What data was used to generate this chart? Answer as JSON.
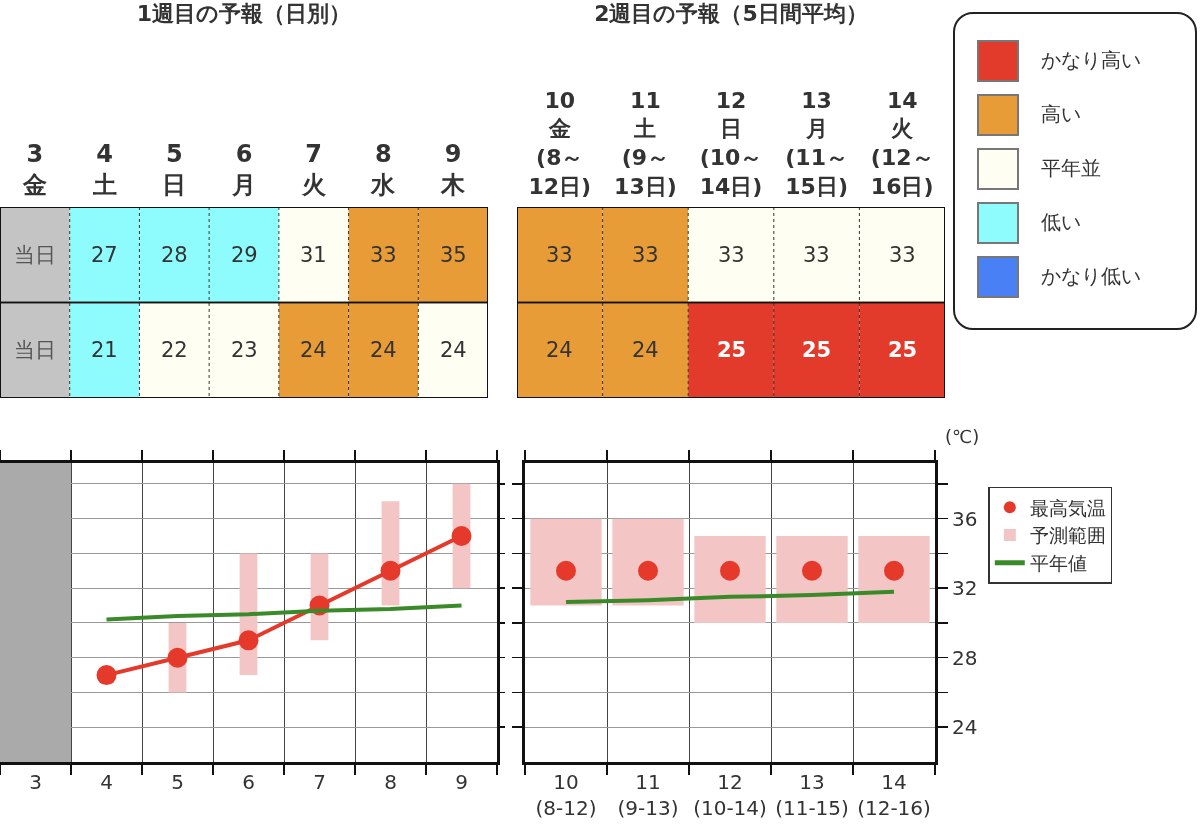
{
  "chart_data": [
    {
      "type": "heatmap",
      "title": "1週目の予報（日別）",
      "categories": [
        "3\n金",
        "4\n土",
        "5\n日",
        "6\n月",
        "7\n火",
        "8\n水",
        "9\n木"
      ],
      "y_categories": [
        null,
        null
      ],
      "data_labels": true,
      "cells": [
        [
          null,
          27,
          28,
          29,
          31,
          33,
          35
        ],
        [
          null,
          21,
          22,
          23,
          24,
          24,
          24
        ]
      ],
      "cell_labels": [
        [
          "当日",
          "27",
          "28",
          "29",
          "31",
          "33",
          "35"
        ],
        [
          "当日",
          "21",
          "22",
          "23",
          "24",
          "24",
          "24"
        ]
      ],
      "colors": [
        [
          "#c4c4c4",
          "#8efcfc",
          "#8efcfc",
          "#8efcfc",
          "#fffef2",
          "#e89c38",
          "#e89c38"
        ],
        [
          "#c4c4c4",
          "#8efcfc",
          "#fffef2",
          "#fffef2",
          "#e89c38",
          "#e89c38",
          "#fffef2"
        ]
      ]
    },
    {
      "type": "heatmap",
      "title": "2週目の予報（5日間平均）",
      "categories": [
        "10\n金\n(8～\n12日)",
        "11\n土\n(9～\n13日)",
        "12\n日\n(10～\n14日)",
        "13\n月\n(11～\n15日)",
        "14\n火\n(12～\n16日)"
      ],
      "y_categories": [
        null,
        null
      ],
      "data_labels": true,
      "cells": [
        [
          33,
          33,
          33,
          33,
          33
        ],
        [
          24,
          24,
          25,
          25,
          25
        ]
      ],
      "colors": [
        [
          "#e89c38",
          "#e89c38",
          "#fffef2",
          "#fffef2",
          "#fffef2"
        ],
        [
          "#e89c38",
          "#e89c38",
          "#e23b2b",
          "#e23b2b",
          "#e23b2b"
        ]
      ]
    },
    {
      "type": "line",
      "categories": [
        "3",
        "4",
        "5",
        "6",
        "7",
        "8",
        "9"
      ],
      "ylim": [
        22,
        39.2
      ],
      "yticks": [
        24,
        {
          "value": 26,
          "label": null
        },
        28,
        {
          "value": 30,
          "label": null
        },
        32,
        {
          "value": 34,
          "label": null
        },
        36,
        {
          "value": 38,
          "label": null
        }
      ],
      "grid": true,
      "tick_labels": "x",
      "bands": [
        {
          "axis": "x",
          "from": "3",
          "to": "3",
          "color": "#aaaaaa"
        }
      ],
      "series": [
        {
          "type": "bar",
          "color": "#f4c5c5",
          "base": [
            null,
            null,
            26,
            27,
            29,
            31,
            32
          ],
          "values": [
            null,
            null,
            4,
            7,
            5,
            6,
            6
          ]
        },
        {
          "type": "line",
          "color": "#e53a2b",
          "marker": "circle",
          "values": [
            null,
            27,
            28,
            29,
            31,
            33,
            35
          ]
        },
        {
          "type": "line",
          "color": "#3a8a2a",
          "marker": "none",
          "values": [
            null,
            30.2,
            30.4,
            30.5,
            30.7,
            30.8,
            31.0
          ]
        }
      ]
    },
    {
      "type": "line",
      "categories": [
        "10\n(8-12)",
        "11\n(9-13)",
        "12\n(10-14)",
        "13\n(11-15)",
        "14\n(12-16)"
      ],
      "ylabel": "(℃)",
      "ylim": [
        22,
        39.2
      ],
      "yticks": [
        24,
        {
          "value": 26,
          "label": null
        },
        28,
        {
          "value": 30,
          "label": null
        },
        32,
        {
          "value": 34,
          "label": null
        },
        36,
        {
          "value": 38,
          "label": null
        }
      ],
      "grid": true,
      "legend": "right",
      "series": [
        {
          "type": "scatter",
          "name": "最高気温",
          "color": "#e53a2b",
          "marker": "circle",
          "values": [
            33,
            33,
            33,
            33,
            33
          ]
        },
        {
          "type": "bar",
          "name": "予測範囲",
          "color": "#f4c5c5",
          "base": [
            31,
            31,
            30,
            30,
            30
          ],
          "values": [
            5,
            5,
            5,
            5,
            5
          ]
        },
        {
          "type": "line",
          "name": "平年値",
          "color": "#3a8a2a",
          "marker": "none",
          "values": [
            31.2,
            31.3,
            31.5,
            31.6,
            31.8
          ]
        }
      ]
    },
    {
      "type": "other",
      "categories": [
        "かなり高い",
        "高い",
        "平年並",
        "低い",
        "かなり低い"
      ],
      "colors": [
        "#e23b2b",
        "#e89c38",
        "#fffef2",
        "#8efcfc",
        "#4a80f5"
      ]
    }
  ]
}
